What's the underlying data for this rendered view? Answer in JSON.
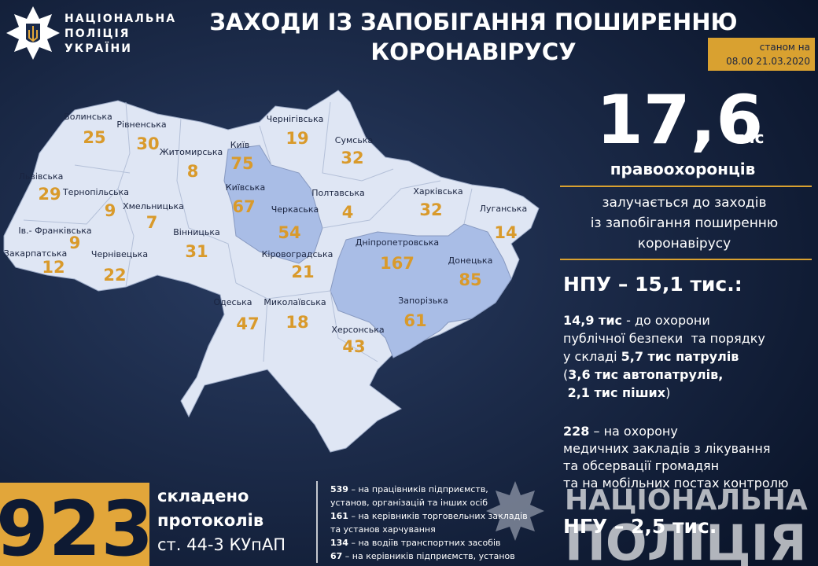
{
  "header": {
    "logo": [
      "НАЦІОНАЛЬНА",
      "ПОЛІЦІЯ",
      "УКРАЇНИ"
    ],
    "title": [
      "ЗАХОДИ ІЗ ЗАПОБІГАННЯ ПОШИРЕННЮ",
      "КОРОНАВІРУСУ"
    ],
    "date": [
      "станом на",
      "08.00 21.03.2020"
    ]
  },
  "map": {
    "regions": [
      {
        "name": "Волинська",
        "value": "25"
      },
      {
        "name": "Рівненська",
        "value": "30"
      },
      {
        "name": "Житомирська",
        "value": "8"
      },
      {
        "name": "Київ",
        "value": "75"
      },
      {
        "name": "Київська",
        "value": "67"
      },
      {
        "name": "Чернігівська",
        "value": "19"
      },
      {
        "name": "Сумська",
        "value": "32"
      },
      {
        "name": "Львівська",
        "value": "29"
      },
      {
        "name": "Тернопільська",
        "value": "9"
      },
      {
        "name": "Хмельницька",
        "value": "7"
      },
      {
        "name": "Ів.- Франківська",
        "value": "9"
      },
      {
        "name": "Закарпатська",
        "value": "12"
      },
      {
        "name": "Чернівецька",
        "value": "22"
      },
      {
        "name": "Вінницька",
        "value": "31"
      },
      {
        "name": "Черкаська",
        "value": "54"
      },
      {
        "name": "Полтавська",
        "value": "4"
      },
      {
        "name": "Харківська",
        "value": "32"
      },
      {
        "name": "Луганська",
        "value": "14"
      },
      {
        "name": "Дніпропетровська",
        "value": "167"
      },
      {
        "name": "Донецька",
        "value": "85"
      },
      {
        "name": "Кіровоградська",
        "value": "21"
      },
      {
        "name": "Одеська",
        "value": "47"
      },
      {
        "name": "Миколаївська",
        "value": "18"
      },
      {
        "name": "Запорізька",
        "value": "61"
      },
      {
        "name": "Херсонська",
        "value": "43"
      }
    ]
  },
  "summary": {
    "total": "17,6",
    "unit": "тис",
    "subject": "правоохоронців",
    "description": [
      "залучається до заходів",
      "із запобігання поширенню",
      "коронавірусу"
    ]
  },
  "npu": {
    "title": "НПУ – 15,1 тис.:",
    "public_order": [
      [
        {
          "text": "14,9 тис",
          "bold": true
        },
        {
          "text": " - до охорони",
          "bold": false
        }
      ],
      [
        {
          "text": "публічної безпеки  та порядку",
          "bold": false
        }
      ],
      [
        {
          "text": "у складі ",
          "bold": false
        },
        {
          "text": "5,7 тис патрулів",
          "bold": true
        }
      ],
      [
        {
          "text": "(",
          "bold": false
        },
        {
          "text": "3,6 тис автопатрулів,",
          "bold": true
        }
      ],
      [
        {
          "text": " 2,1 тис піших",
          "bold": true
        },
        {
          "text": ")",
          "bold": false
        }
      ]
    ],
    "medical": [
      [
        {
          "text": "228",
          "bold": true
        },
        {
          "text": " – на охорону",
          "bold": false
        }
      ],
      [
        {
          "text": "медичних закладів з лікування",
          "bold": false
        }
      ],
      [
        {
          "text": "та обсервації громадян",
          "bold": false
        }
      ],
      [
        {
          "text": "та на мобільних постах контролю",
          "bold": false
        }
      ]
    ]
  },
  "ngu": "НГУ – 2,5 тис.",
  "protocols": {
    "count": "923",
    "text": [
      "складено",
      "протоколів",
      "ст. 44-3 КУпАП"
    ],
    "items": [
      [
        {
          "text": "539",
          "bold": true
        },
        {
          "text": " – на працівників підприємств,",
          "bold": false
        }
      ],
      [
        {
          "text": "установ, організацій та інших осіб",
          "bold": false
        }
      ],
      [
        {
          "text": "161",
          "bold": true
        },
        {
          "text": " – на керівників торговельних закладів",
          "bold": false
        }
      ],
      [
        {
          "text": "та установ харчування",
          "bold": false
        }
      ],
      [
        {
          "text": "134",
          "bold": true
        },
        {
          "text": " – на водіїв транспортних засобів",
          "bold": false
        }
      ],
      [
        {
          "text": "67",
          "bold": true
        },
        {
          "text": " – на керівників підприємств, установ",
          "bold": false
        }
      ]
    ]
  },
  "watermark": [
    "НАЦІОНАЛЬНА",
    "ПОЛІЦІЯ"
  ]
}
